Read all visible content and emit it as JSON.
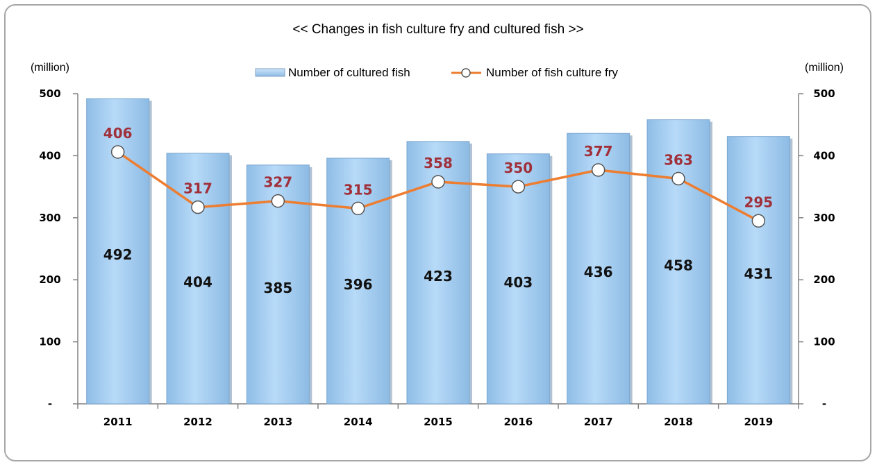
{
  "chart_data": {
    "type": "bar",
    "title": "<< Changes in fish culture fry and cultured fish >>",
    "left_unit": "(million)",
    "right_unit": "(million)",
    "categories": [
      "2011",
      "2012",
      "2013",
      "2014",
      "2015",
      "2016",
      "2017",
      "2018",
      "2019"
    ],
    "series": [
      {
        "name": "Number of cultured fish",
        "type": "bar",
        "axis": "left",
        "values": [
          492,
          404,
          385,
          396,
          423,
          403,
          436,
          458,
          431
        ],
        "labels": [
          "492",
          "404",
          "385",
          "396",
          "423",
          "403",
          "436",
          "458",
          "431"
        ],
        "color": "#a9d1f5"
      },
      {
        "name": "Number of fish culture fry",
        "type": "line",
        "axis": "right",
        "values": [
          406,
          317,
          327,
          315,
          358,
          350,
          377,
          363,
          295
        ],
        "labels": [
          "406",
          "317",
          "327",
          "315",
          "358",
          "350",
          "377",
          "363",
          "295"
        ],
        "color": "#ed7d31",
        "label_color": "#a0303a"
      }
    ],
    "ylim": [
      0,
      500
    ],
    "y2lim": [
      0,
      500
    ],
    "yticks": [
      "-",
      "100",
      "200",
      "300",
      "400",
      "500"
    ],
    "y2ticks": [
      "-",
      "100",
      "200",
      "300",
      "400",
      "500"
    ],
    "grid": false,
    "legend_position": "top-center"
  }
}
